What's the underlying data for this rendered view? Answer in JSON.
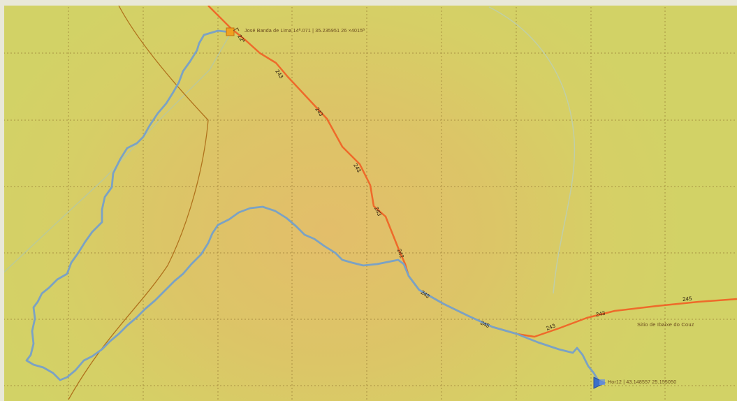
{
  "map": {
    "colors": {
      "road": "#ee6a2a",
      "track": "#7ba2c4",
      "boundary": "#b0721c",
      "faint_line": "#a9c7bd",
      "grid": "#8a6a28",
      "start_marker": "#f0a020",
      "end_marker": "#3a6fc8"
    },
    "start_label": "José Banda de Lima  14ª.071 | 35.235951  26 ×4015ª",
    "end_label": "Hor12 | 43.148557  25.155050",
    "place_label": "Sitio de Ibaixe do Couz",
    "km_markers": [
      "22ª",
      "243",
      "243",
      "243",
      "243",
      "242",
      "243",
      "245",
      "243",
      "243",
      "245"
    ]
  }
}
